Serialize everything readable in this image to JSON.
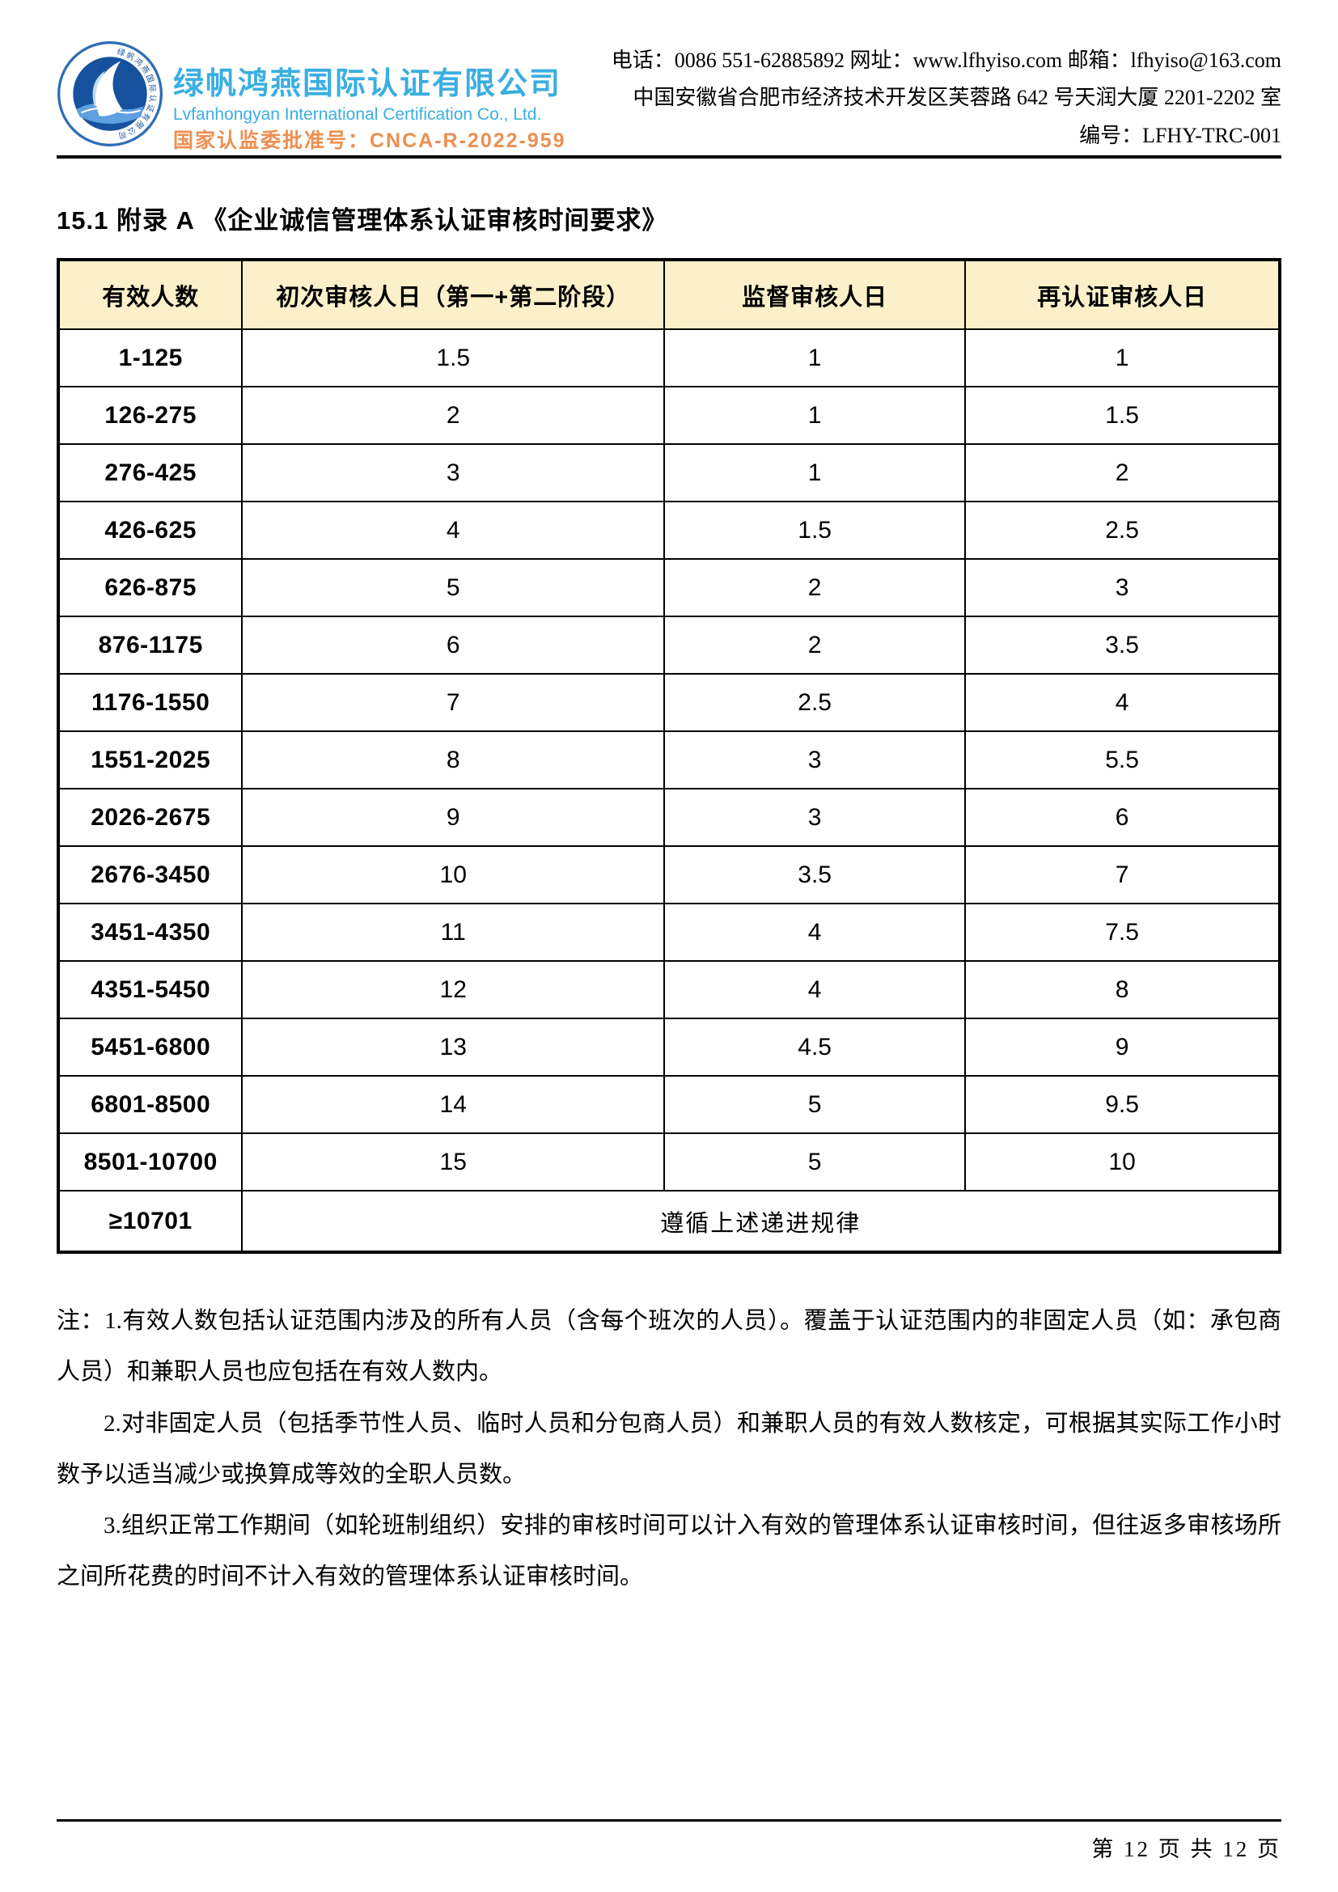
{
  "colors": {
    "brand_cyan": "#3BAEE1",
    "approval_orange": "#ED8F52",
    "table_header_bg": "#FBF0C9",
    "logo_blue": "#16519E"
  },
  "header": {
    "logo_ring_text": "绿帆鸿燕国际认证有限公司",
    "company_name_cn": "绿帆鸿燕国际认证有限公司",
    "company_name_en": "Lvfanhongyan International Certification Co., Ltd.",
    "approval_number": "国家认监委批准号：CNCA-R-2022-959",
    "contact_line1": "电话：0086 551-62885892 网址：www.lfhyiso.com 邮箱：lfhyiso@163.com",
    "contact_line2": "中国安徽省合肥市经济技术开发区芙蓉路 642 号天润大厦 2201-2202 室",
    "doc_number": "编号：LFHY-TRC-001"
  },
  "title": "15.1 附录 A  《企业诚信管理体系认证审核时间要求》",
  "table": {
    "headers": [
      "有效人数",
      "初次审核人日（第一+第二阶段）",
      "监督审核人日",
      "再认证审核人日"
    ],
    "rows": [
      {
        "range": "1-125",
        "initial": "1.5",
        "surveillance": "1",
        "recert": "1"
      },
      {
        "range": "126-275",
        "initial": "2",
        "surveillance": "1",
        "recert": "1.5"
      },
      {
        "range": "276-425",
        "initial": "3",
        "surveillance": "1",
        "recert": "2"
      },
      {
        "range": "426-625",
        "initial": "4",
        "surveillance": "1.5",
        "recert": "2.5"
      },
      {
        "range": "626-875",
        "initial": "5",
        "surveillance": "2",
        "recert": "3"
      },
      {
        "range": "876-1175",
        "initial": "6",
        "surveillance": "2",
        "recert": "3.5"
      },
      {
        "range": "1176-1550",
        "initial": "7",
        "surveillance": "2.5",
        "recert": "4"
      },
      {
        "range": "1551-2025",
        "initial": "8",
        "surveillance": "3",
        "recert": "5.5"
      },
      {
        "range": "2026-2675",
        "initial": "9",
        "surveillance": "3",
        "recert": "6"
      },
      {
        "range": "2676-3450",
        "initial": "10",
        "surveillance": "3.5",
        "recert": "7"
      },
      {
        "range": "3451-4350",
        "initial": "11",
        "surveillance": "4",
        "recert": "7.5"
      },
      {
        "range": "4351-5450",
        "initial": "12",
        "surveillance": "4",
        "recert": "8"
      },
      {
        "range": "5451-6800",
        "initial": "13",
        "surveillance": "4.5",
        "recert": "9"
      },
      {
        "range": "6801-8500",
        "initial": "14",
        "surveillance": "5",
        "recert": "9.5"
      },
      {
        "range": "8501-10700",
        "initial": "15",
        "surveillance": "5",
        "recert": "10"
      }
    ],
    "span_row": {
      "range": "≥10701",
      "text": "遵循上述递进规律"
    }
  },
  "notes": [
    "注：1.有效人数包括认证范围内涉及的所有人员（含每个班次的人员）。覆盖于认证范围内的非固定人员（如：承包商人员）和兼职人员也应包括在有效人数内。",
    "2.对非固定人员（包括季节性人员、临时人员和分包商人员）和兼职人员的有效人数核定，可根据其实际工作小时数予以适当减少或换算成等效的全职人员数。",
    "3.组织正常工作期间（如轮班制组织）安排的审核时间可以计入有效的管理体系认证审核时间，但往返多审核场所之间所花费的时间不计入有效的管理体系认证审核时间。"
  ],
  "footer": {
    "page_text": "第 12 页 共 12 页"
  }
}
